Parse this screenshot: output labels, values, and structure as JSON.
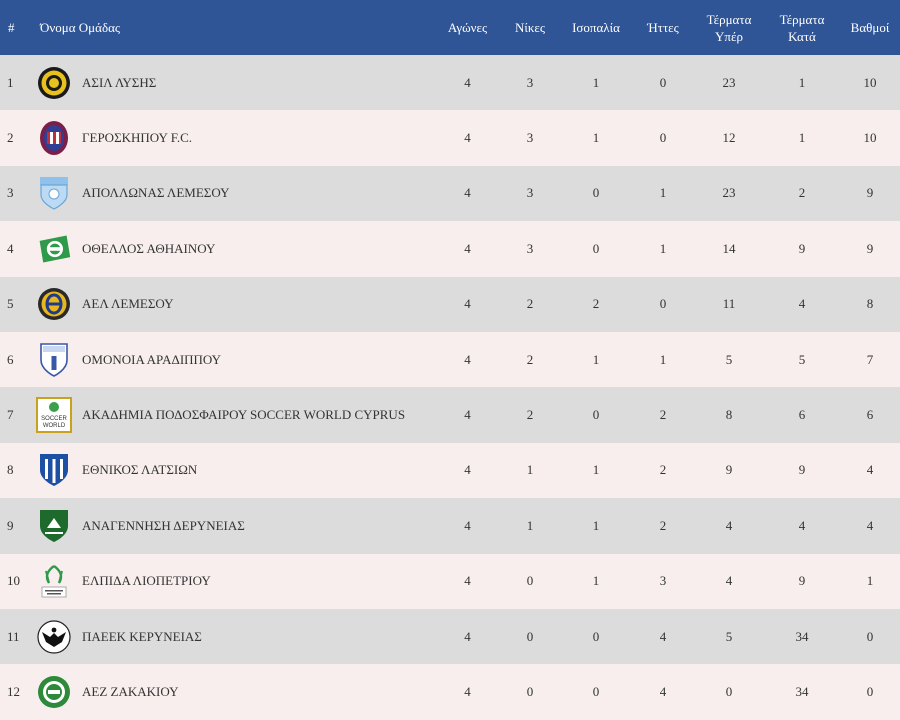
{
  "header": {
    "rank": "#",
    "team": "Όνομα Ομάδας",
    "played": "Αγώνες",
    "wins": "Νίκες",
    "draws": "Ισοπαλία",
    "losses": "Ήττες",
    "goals_for_line1": "Τέρματα",
    "goals_for_line2": "Υπέρ",
    "goals_against_line1": "Τέρματα",
    "goals_against_line2": "Κατά",
    "points": "Βαθμοί"
  },
  "colors": {
    "header_bg": "#2f5596",
    "row_odd": "#dcdcdc",
    "row_even": "#f8eeee"
  },
  "rows": [
    {
      "rank": "1",
      "team": "ΑΣΙΛ ΛΥΣΗΣ",
      "played": "4",
      "wins": "3",
      "draws": "1",
      "losses": "0",
      "gf": "23",
      "ga": "1",
      "pts": "10",
      "logo": "asil-lysis-crest-icon"
    },
    {
      "rank": "2",
      "team": "ΓΕΡΟΣΚΗΠΟΥ F.C.",
      "played": "4",
      "wins": "3",
      "draws": "1",
      "losses": "0",
      "gf": "12",
      "ga": "1",
      "pts": "10",
      "logo": "geroskipou-crest-icon"
    },
    {
      "rank": "3",
      "team": "ΑΠΟΛΛΩΝΑΣ ΛΕΜΕΣΟΥ",
      "played": "4",
      "wins": "3",
      "draws": "0",
      "losses": "1",
      "gf": "23",
      "ga": "2",
      "pts": "9",
      "logo": "apollon-crest-icon"
    },
    {
      "rank": "4",
      "team": "ΟΘΕΛΛΟΣ ΑΘΗΑΙΝΟΥ",
      "played": "4",
      "wins": "3",
      "draws": "0",
      "losses": "1",
      "gf": "14",
      "ga": "9",
      "pts": "9",
      "logo": "othellos-crest-icon"
    },
    {
      "rank": "5",
      "team": "ΑΕΛ ΛΕΜΕΣΟΥ",
      "played": "4",
      "wins": "2",
      "draws": "2",
      "losses": "0",
      "gf": "11",
      "ga": "4",
      "pts": "8",
      "logo": "ael-crest-icon"
    },
    {
      "rank": "6",
      "team": "ΟΜΟΝΟΙΑ ΑΡΑΔΙΠΠΟΥ",
      "played": "4",
      "wins": "2",
      "draws": "1",
      "losses": "1",
      "gf": "5",
      "ga": "5",
      "pts": "7",
      "logo": "omonoia-aradippou-crest-icon"
    },
    {
      "rank": "7",
      "team": "ΑΚΑΔΗΜΙΑ ΠΟΔΟΣΦΑΙΡΟΥ SOCCER WORLD CYPRUS",
      "played": "4",
      "wins": "2",
      "draws": "0",
      "losses": "2",
      "gf": "8",
      "ga": "6",
      "pts": "6",
      "logo": "soccer-world-logo-icon",
      "logo_text": [
        "SOCCER",
        "WORLD"
      ]
    },
    {
      "rank": "8",
      "team": "ΕΘΝΙΚΟΣ ΛΑΤΣΙΩΝ",
      "played": "4",
      "wins": "1",
      "draws": "1",
      "losses": "2",
      "gf": "9",
      "ga": "9",
      "pts": "4",
      "logo": "ethnikos-latsion-crest-icon"
    },
    {
      "rank": "9",
      "team": "ΑΝΑΓΕΝΝΗΣΗ ΔΕΡΥΝΕΙΑΣ",
      "played": "4",
      "wins": "1",
      "draws": "1",
      "losses": "2",
      "gf": "4",
      "ga": "4",
      "pts": "4",
      "logo": "anagennisi-crest-icon"
    },
    {
      "rank": "10",
      "team": "ΕΛΠΙΔΑ ΛΙΟΠΕΤΡΙΟΥ",
      "played": "4",
      "wins": "0",
      "draws": "1",
      "losses": "3",
      "gf": "4",
      "ga": "9",
      "pts": "1",
      "logo": "elpida-crest-icon"
    },
    {
      "rank": "11",
      "team": "ΠΑΕΕΚ ΚΕΡΥΝΕΙΑΣ",
      "played": "4",
      "wins": "0",
      "draws": "0",
      "losses": "4",
      "gf": "5",
      "ga": "34",
      "pts": "0",
      "logo": "paeek-eagle-crest-icon"
    },
    {
      "rank": "12",
      "team": "ΑΕΖ ΖΑΚΑΚΙΟΥ",
      "played": "4",
      "wins": "0",
      "draws": "0",
      "losses": "4",
      "gf": "0",
      "ga": "34",
      "pts": "0",
      "logo": "aez-crest-icon"
    }
  ]
}
